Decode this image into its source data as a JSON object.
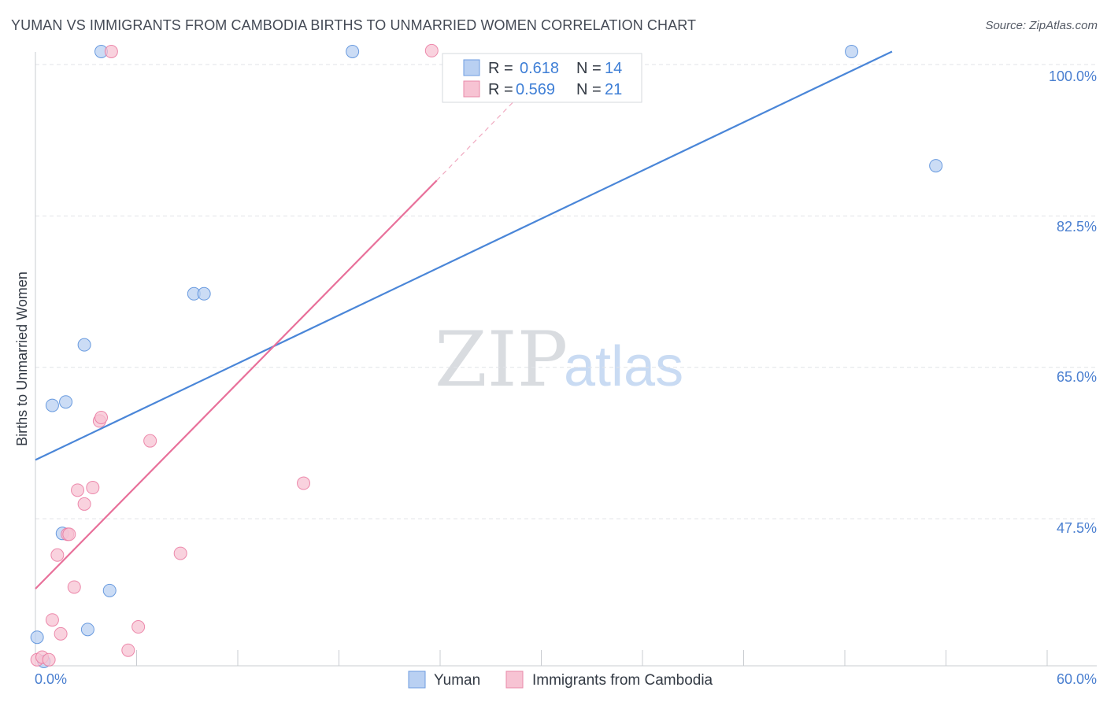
{
  "title": "YUMAN VS IMMIGRANTS FROM CAMBODIA BIRTHS TO UNMARRIED WOMEN CORRELATION CHART",
  "source": "Source: ZipAtlas.com",
  "watermark": {
    "zip": "ZIP",
    "atlas": "atlas"
  },
  "chart_data": {
    "type": "scatter",
    "title": "YUMAN VS IMMIGRANTS FROM CAMBODIA BIRTHS TO UNMARRIED WOMEN CORRELATION CHART",
    "xlabel": "",
    "ylabel": "Births to Unmarried Women",
    "xlim": [
      0,
      60
    ],
    "ylim": [
      30.5,
      102
    ],
    "x_tick_labels": [
      "0.0%",
      "60.0%"
    ],
    "y_ticks": [
      47.5,
      65.0,
      82.5,
      100.0
    ],
    "y_tick_labels": [
      "47.5%",
      "65.0%",
      "82.5%",
      "100.0%"
    ],
    "grid": true,
    "legend_position": "top-center",
    "series": [
      {
        "name": "Yuman",
        "color": "#4a86d8",
        "fill": "#b9d0f2",
        "R": "0.618",
        "N": "14",
        "points": [
          [
            0.1,
            33.8
          ],
          [
            0.5,
            31.0
          ],
          [
            1.0,
            60.6
          ],
          [
            1.8,
            61.0
          ],
          [
            1.6,
            45.8
          ],
          [
            2.9,
            67.6
          ],
          [
            3.1,
            34.7
          ],
          [
            3.9,
            101.5
          ],
          [
            4.4,
            39.2
          ],
          [
            9.4,
            73.5
          ],
          [
            10.0,
            73.5
          ],
          [
            18.8,
            101.5
          ],
          [
            48.4,
            101.5
          ],
          [
            53.4,
            88.3
          ]
        ],
        "trend": {
          "x0": 0,
          "y0": 54.3,
          "x1": 50.8,
          "y1": 101.5
        }
      },
      {
        "name": "Immigrants from Cambodia",
        "color": "#e8709a",
        "fill": "#f7c3d3",
        "R": "0.569",
        "N": "21",
        "points": [
          [
            0.1,
            31.2
          ],
          [
            0.4,
            31.5
          ],
          [
            0.8,
            31.2
          ],
          [
            1.0,
            35.8
          ],
          [
            1.3,
            43.3
          ],
          [
            1.5,
            34.2
          ],
          [
            1.9,
            45.7
          ],
          [
            2.0,
            45.7
          ],
          [
            2.3,
            39.6
          ],
          [
            2.5,
            50.8
          ],
          [
            2.9,
            49.2
          ],
          [
            3.4,
            51.1
          ],
          [
            3.8,
            58.8
          ],
          [
            3.9,
            59.2
          ],
          [
            4.5,
            101.5
          ],
          [
            5.5,
            32.3
          ],
          [
            6.1,
            35.0
          ],
          [
            6.8,
            56.5
          ],
          [
            8.6,
            43.5
          ],
          [
            15.9,
            51.6
          ],
          [
            23.5,
            101.6
          ]
        ],
        "trend": {
          "x0": 0,
          "y0": 39.4,
          "x1": 23.8,
          "y1": 86.6
        },
        "trend_dashed": {
          "x0": 23.8,
          "y0": 86.6,
          "x1": 28.5,
          "y1": 96.0
        }
      }
    ]
  },
  "legend": {
    "r_label": "R =",
    "n_label": "N =",
    "yuman_r": "0.618",
    "yuman_n": "14",
    "cambodia_r": "0.569",
    "cambodia_n": "21"
  },
  "bottom_legend": {
    "yuman": "Yuman",
    "cambodia": "Immigrants from Cambodia"
  }
}
